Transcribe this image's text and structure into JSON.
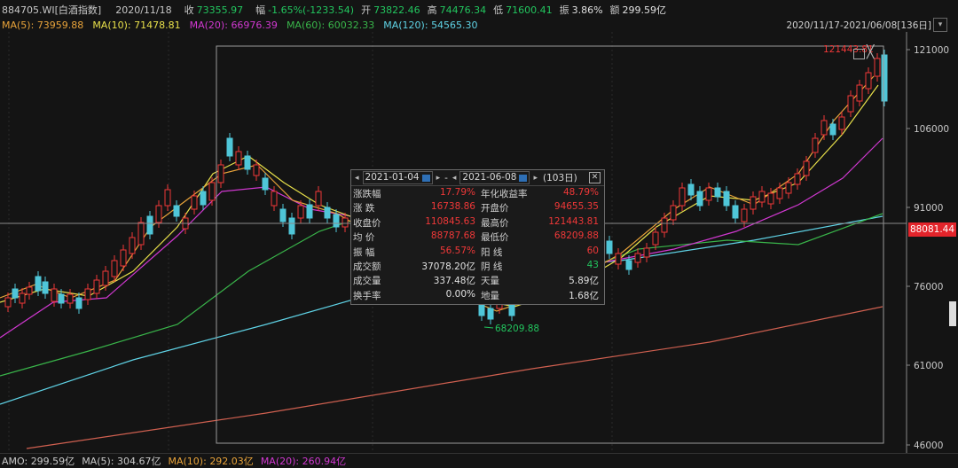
{
  "infobar": {
    "code": "884705.WI[白酒指数]",
    "date": "2020/11/18",
    "close_label": "收",
    "close_value": "73355.97",
    "change_label": "幅",
    "change_value": "-1.65%(-1233.54)",
    "open_label": "开",
    "open_value": "73822.46",
    "high_label": "高",
    "high_value": "74476.34",
    "low_label": "低",
    "low_value": "71600.41",
    "amp_label": "振",
    "amp_value": "3.86%",
    "amount_label": "额",
    "amount_value": "299.59亿"
  },
  "ma": [
    {
      "label": "MA(5):",
      "value": "73959.88",
      "color": "#e8a33a"
    },
    {
      "label": "MA(10):",
      "value": "71478.81",
      "color": "#e8e04a"
    },
    {
      "label": "MA(20):",
      "value": "66976.39",
      "color": "#d038d0"
    },
    {
      "label": "MA(60):",
      "value": "60032.33",
      "color": "#39b54a"
    },
    {
      "label": "MA(120):",
      "value": "54565.30",
      "color": "#5fd3e6"
    }
  ],
  "range": {
    "text": "2020/11/17-2021/06/08[136日]",
    "dropdown": "▾"
  },
  "axis": {
    "ticks": [
      "121000",
      "106000",
      "91000",
      "76000",
      "61000",
      "46000"
    ]
  },
  "current_price": "88081.44",
  "annotations": {
    "high": "121443.81",
    "low": "68209.88"
  },
  "bottom": [
    {
      "label": "AMO:",
      "value": "299.59亿",
      "color": "#c8c8c8"
    },
    {
      "label": "MA(5):",
      "value": "304.67亿",
      "color": "#c8c8c8"
    },
    {
      "label": "MA(10):",
      "value": "292.03亿",
      "color": "#e8a33a"
    },
    {
      "label": "MA(20):",
      "value": "260.94亿",
      "color": "#d038d0"
    }
  ],
  "popup": {
    "start_date": "2021-01-04",
    "end_date": "2021-06-08",
    "dash": "-",
    "days": "(103日)",
    "close": "✕",
    "rows": [
      {
        "k1": "涨跌幅",
        "v1": "17.79%",
        "c1": "red",
        "k2": "年化收益率",
        "v2": "48.79%",
        "c2": "red"
      },
      {
        "k1": "涨 跌",
        "v1": "16738.86",
        "c1": "red",
        "k2": "开盘价",
        "v2": "94655.35",
        "c2": "red"
      },
      {
        "k1": "收盘价",
        "v1": "110845.63",
        "c1": "red",
        "k2": "最高价",
        "v2": "121443.81",
        "c2": "red"
      },
      {
        "k1": "均 价",
        "v1": "88787.68",
        "c1": "red",
        "k2": "最低价",
        "v2": "68209.88",
        "c2": "red"
      },
      {
        "k1": "振 幅",
        "v1": "56.57%",
        "c1": "red",
        "k2": "阳 线",
        "v2": "60",
        "c2": "red"
      },
      {
        "k1": "成交额",
        "v1": "37078.20亿",
        "c1": "white",
        "k2": "阴 线",
        "v2": "43",
        "c2": "green"
      },
      {
        "k1": "成交量",
        "v1": "337.48亿",
        "c1": "white",
        "k2": "天量",
        "v2": "5.89亿",
        "c2": "white"
      },
      {
        "k1": "换手率",
        "v1": "0.00%",
        "c1": "white",
        "k2": "地量",
        "v2": "1.68亿",
        "c2": "white"
      }
    ]
  }
}
